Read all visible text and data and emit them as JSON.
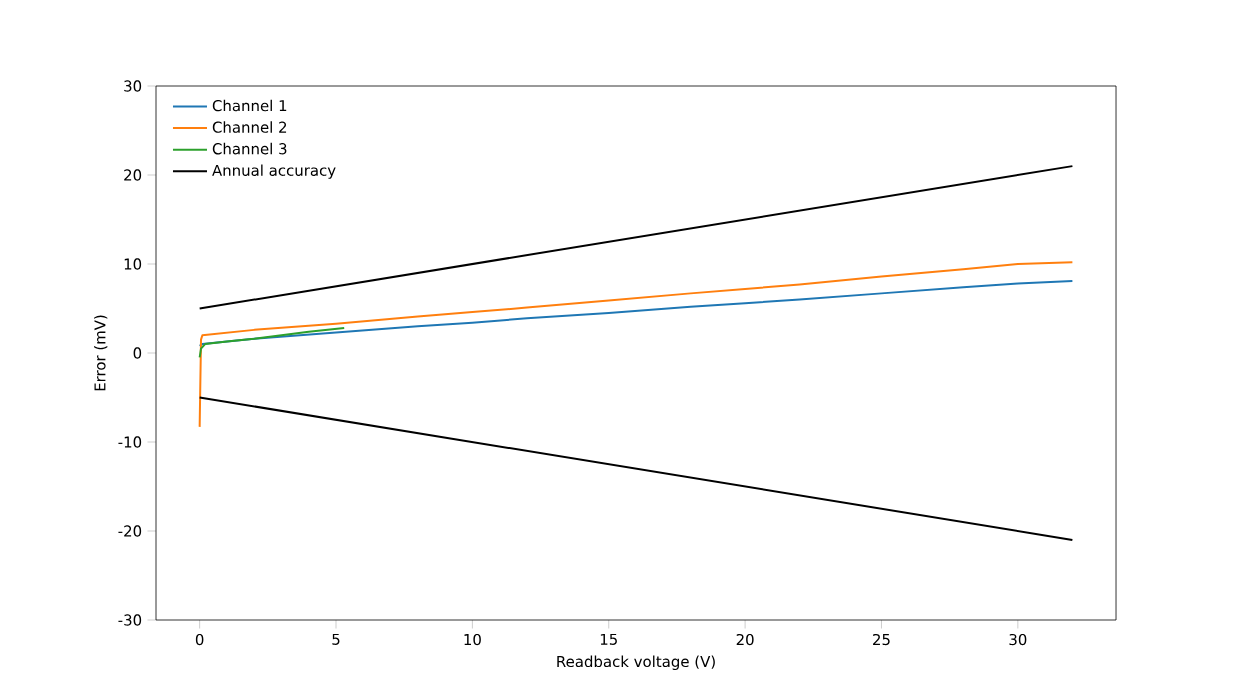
{
  "chart_data": {
    "type": "line",
    "xlabel": "Readback voltage (V)",
    "ylabel": "Error (mV)",
    "xlim": [
      -1.6,
      33.6
    ],
    "ylim": [
      -30,
      30
    ],
    "xticks": [
      0,
      5,
      10,
      15,
      20,
      25,
      30
    ],
    "yticks": [
      -30,
      -20,
      -10,
      0,
      10,
      20,
      30
    ],
    "legend": "top left",
    "grid": false,
    "marker": "none",
    "line_style": "solid",
    "series": [
      {
        "name": "Channel 1",
        "color": "#1f77b4",
        "x": [
          0,
          0.1,
          2,
          5,
          8,
          10,
          12,
          15,
          18,
          20,
          22,
          25,
          28,
          30,
          32
        ],
        "values": [
          0.8,
          1.0,
          1.6,
          2.3,
          3.0,
          3.4,
          3.9,
          4.5,
          5.2,
          5.6,
          6.0,
          6.7,
          7.4,
          7.8,
          8.1
        ]
      },
      {
        "name": "Channel 2",
        "color": "#ff7f0e",
        "x": [
          0,
          0.05,
          0.1,
          2,
          5,
          8,
          10,
          12,
          15,
          18,
          20,
          22,
          25,
          28,
          30,
          32
        ],
        "values": [
          -8.3,
          1.5,
          2.0,
          2.6,
          3.3,
          4.1,
          4.6,
          5.1,
          5.9,
          6.7,
          7.2,
          7.7,
          8.6,
          9.4,
          10.0,
          10.2
        ]
      },
      {
        "name": "Channel 3",
        "color": "#2ca02c",
        "x": [
          0,
          0.05,
          0.2,
          1,
          2,
          3,
          4,
          5.3
        ],
        "values": [
          -0.5,
          0.5,
          1.0,
          1.3,
          1.6,
          2.0,
          2.4,
          2.8
        ]
      },
      {
        "name": "Annual accuracy",
        "color": "#000000",
        "x": [
          0,
          32
        ],
        "values": [
          5,
          21
        ]
      },
      {
        "color": "#000000",
        "x": [
          0,
          32
        ],
        "values": [
          -5,
          -21
        ]
      }
    ]
  }
}
